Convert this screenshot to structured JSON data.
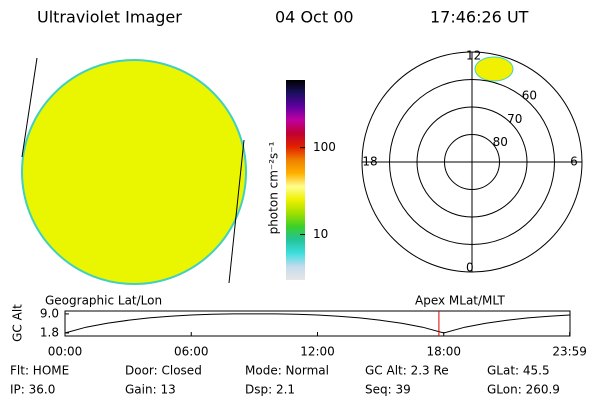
{
  "header": {
    "title": "Ultraviolet Imager",
    "date": "04 Oct 00",
    "time": "17:46:26 UT"
  },
  "colorbar": {
    "label": "photon cm⁻²s⁻¹",
    "log": true,
    "lim": [
      3,
      600
    ],
    "ticks": [
      10,
      100
    ],
    "colors": [
      "#e6e6e6",
      "#c4dcec",
      "#3fdede",
      "#22c49a",
      "#3ccf2a",
      "#9fe000",
      "#eef000",
      "#ffff90",
      "#ffb000",
      "#f08000",
      "#e02000",
      "#c00030",
      "#c000a0",
      "#6000a0",
      "#1c1060",
      "#000000"
    ]
  },
  "polar": {
    "rlim": [
      90,
      50
    ],
    "lat_ticks": [
      80,
      70,
      60
    ],
    "mlt_ticks": [
      12,
      18,
      6,
      0
    ],
    "grid_color": "#000000",
    "oval_color": "#f0f000"
  },
  "altitude": {
    "ylabel": "GC Alt",
    "left_label": "Geographic Lat/Lon",
    "right_label": "Apex MLat/MLT",
    "xlim": [
      0,
      24
    ],
    "ylim": [
      0.66,
      10.1
    ],
    "xticks": [
      {
        "value": 0,
        "label": "00:00"
      },
      {
        "value": 6,
        "label": "06:00"
      },
      {
        "value": 12,
        "label": "12:00"
      },
      {
        "value": 18,
        "label": "18:00"
      },
      {
        "value": 23.983,
        "label": "23:59"
      }
    ],
    "yticks": [
      {
        "value": 9,
        "label": "9.0"
      },
      {
        "value": 1.8,
        "label": "1.8"
      }
    ],
    "x": [
      0,
      1,
      2,
      3,
      4,
      5,
      6,
      7,
      8,
      9,
      10,
      11,
      12,
      13,
      14,
      15,
      16,
      17,
      18,
      19,
      20,
      21,
      22,
      23,
      23.983
    ],
    "values": [
      1.8,
      4.0,
      5.5,
      6.6,
      7.5,
      8.1,
      8.6,
      8.9,
      9.0,
      9.0,
      9.0,
      8.9,
      8.6,
      8.1,
      7.5,
      6.6,
      5.5,
      4.0,
      1.8,
      4.0,
      5.5,
      6.6,
      7.5,
      8.1,
      8.6
    ],
    "color": "#000000",
    "marker_x": 17.77,
    "marker_color": "#e00000"
  },
  "info": [
    [
      "Flt: HOME",
      "Door: Closed",
      "Mode: Normal",
      "GC Alt: 2.3 Re",
      "GLat: 45.5"
    ],
    [
      "IP: 36.0",
      "Gain: 13",
      "Dsp: 2.1",
      "Seq: 39",
      "GLon: 260.9"
    ]
  ]
}
